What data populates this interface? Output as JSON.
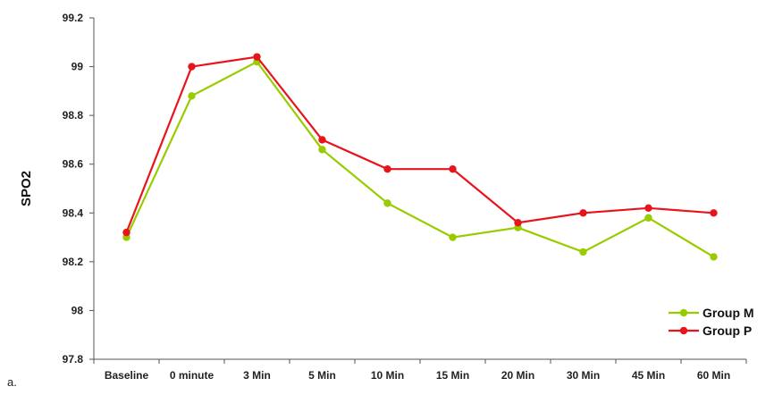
{
  "chart_data": {
    "type": "line",
    "title": "",
    "xlabel": "",
    "ylabel": "SPO2",
    "categories": [
      "Baseline",
      "0 minute",
      "3 Min",
      "5 Min",
      "10 Min",
      "15 Min",
      "20 Min",
      "30 Min",
      "45 Min",
      "60 Min"
    ],
    "ylim": [
      97.8,
      99.2
    ],
    "yticks": [
      97.8,
      98,
      98.2,
      98.4,
      98.6,
      98.8,
      99,
      99.2
    ],
    "ytick_labels": [
      "97.8",
      "98",
      "98.2",
      "98.4",
      "98.6",
      "98.8",
      "99",
      "99.2"
    ],
    "grid": false,
    "legend_position": "bottom-right",
    "series": [
      {
        "name": "Group M",
        "color": "#99cc00",
        "marker": "circle",
        "values": [
          98.3,
          98.88,
          99.02,
          98.66,
          98.44,
          98.3,
          98.34,
          98.24,
          98.38,
          98.22
        ]
      },
      {
        "name": "Group P",
        "color": "#e8141c",
        "marker": "circle",
        "values": [
          98.32,
          99.0,
          99.04,
          98.7,
          98.58,
          98.58,
          98.36,
          98.4,
          98.42,
          98.4
        ]
      }
    ]
  },
  "stray_text": "a."
}
